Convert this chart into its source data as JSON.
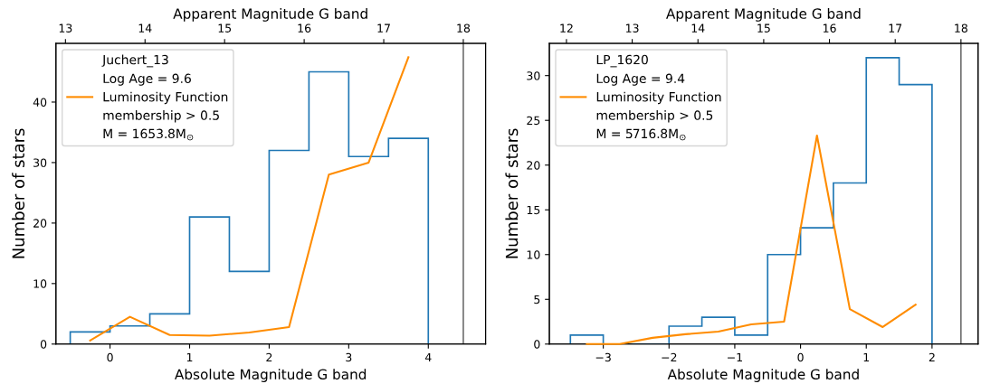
{
  "chart_data": [
    {
      "type": "histogram",
      "xlabel": "Absolute Magnitude G band",
      "ylabel": "Number of stars",
      "x2label": "Apparent Magnitude G band",
      "series": [
        {
          "color": "#1f77b4",
          "bins": [
            -0.5,
            0,
            0.5,
            1,
            1.5,
            2,
            2.5,
            3,
            3.5,
            4
          ],
          "values": [
            2,
            3,
            5,
            21,
            12,
            32,
            45,
            31,
            34
          ]
        },
        {
          "type": "line",
          "name": "Luminosity Function",
          "color": "#ff8c00",
          "x": [
            -0.25,
            0.25,
            0.75,
            1.25,
            1.75,
            2.25,
            2.75,
            3.25,
            3.75
          ],
          "values": [
            0.6,
            4.5,
            1.5,
            1.4,
            1.9,
            2.8,
            28,
            30,
            47.4
          ]
        }
      ],
      "annotations": [
        "Juchert_13",
        "Log Age = 9.6",
        "membership > 0.5",
        "M = 1653.8M$_{⊙}$"
      ],
      "xlim": [
        -0.68,
        4.72
      ],
      "xticks": [
        0,
        1,
        2,
        3,
        4
      ],
      "ylim": [
        0,
        49.7
      ],
      "yticks": [
        0,
        10,
        20,
        30,
        40
      ],
      "x2lim": [
        12.88,
        18.28
      ],
      "x2ticks": [
        13,
        14,
        15,
        16,
        17,
        18
      ],
      "ref_lines": [
        {
          "axis": "x2",
          "value": 18,
          "color": "#555555"
        }
      ],
      "legend": "top left",
      "grid": false
    },
    {
      "type": "histogram",
      "xlabel": "Absolute Magnitude G band",
      "ylabel": "Number of stars",
      "x2label": "Apparent Magnitude G band",
      "series": [
        {
          "color": "#1f77b4",
          "bins": [
            -3.5,
            -3,
            -2.5,
            -2,
            -1.5,
            -1,
            -0.5,
            0,
            0.5,
            1,
            1.5,
            2
          ],
          "values": [
            1,
            0,
            0,
            2,
            3,
            1,
            10,
            13,
            18,
            32,
            29
          ]
        },
        {
          "type": "line",
          "name": "Luminosity Function",
          "color": "#ff8c00",
          "x": [
            -3.25,
            -2.75,
            -2.25,
            -1.75,
            -1.25,
            -0.75,
            -0.25,
            0.25,
            0.75,
            1.25,
            1.75
          ],
          "values": [
            0,
            0,
            0.7,
            1.1,
            1.4,
            2.2,
            2.5,
            23.3,
            3.9,
            1.9,
            4.4
          ]
        }
      ],
      "annotations": [
        "LP_1620",
        "Log Age = 9.4",
        "membership > 0.5",
        "M = 5716.8M$_{⊙}$"
      ],
      "xlim": [
        -3.82,
        2.7
      ],
      "xticks": [
        {
          "value": -3,
          "label": "−3"
        },
        {
          "value": -2,
          "label": "−2"
        },
        {
          "value": -1,
          "label": "−1"
        },
        0,
        1,
        2
      ],
      "ylim": [
        0,
        33.6
      ],
      "yticks": [
        0,
        5,
        10,
        15,
        20,
        25,
        30
      ],
      "x2lim": [
        11.74,
        18.26
      ],
      "x2ticks": [
        12,
        13,
        14,
        15,
        16,
        17,
        18
      ],
      "ref_lines": [
        {
          "axis": "x2",
          "value": 18,
          "color": "#555555"
        }
      ],
      "legend": "top left",
      "grid": false
    }
  ]
}
